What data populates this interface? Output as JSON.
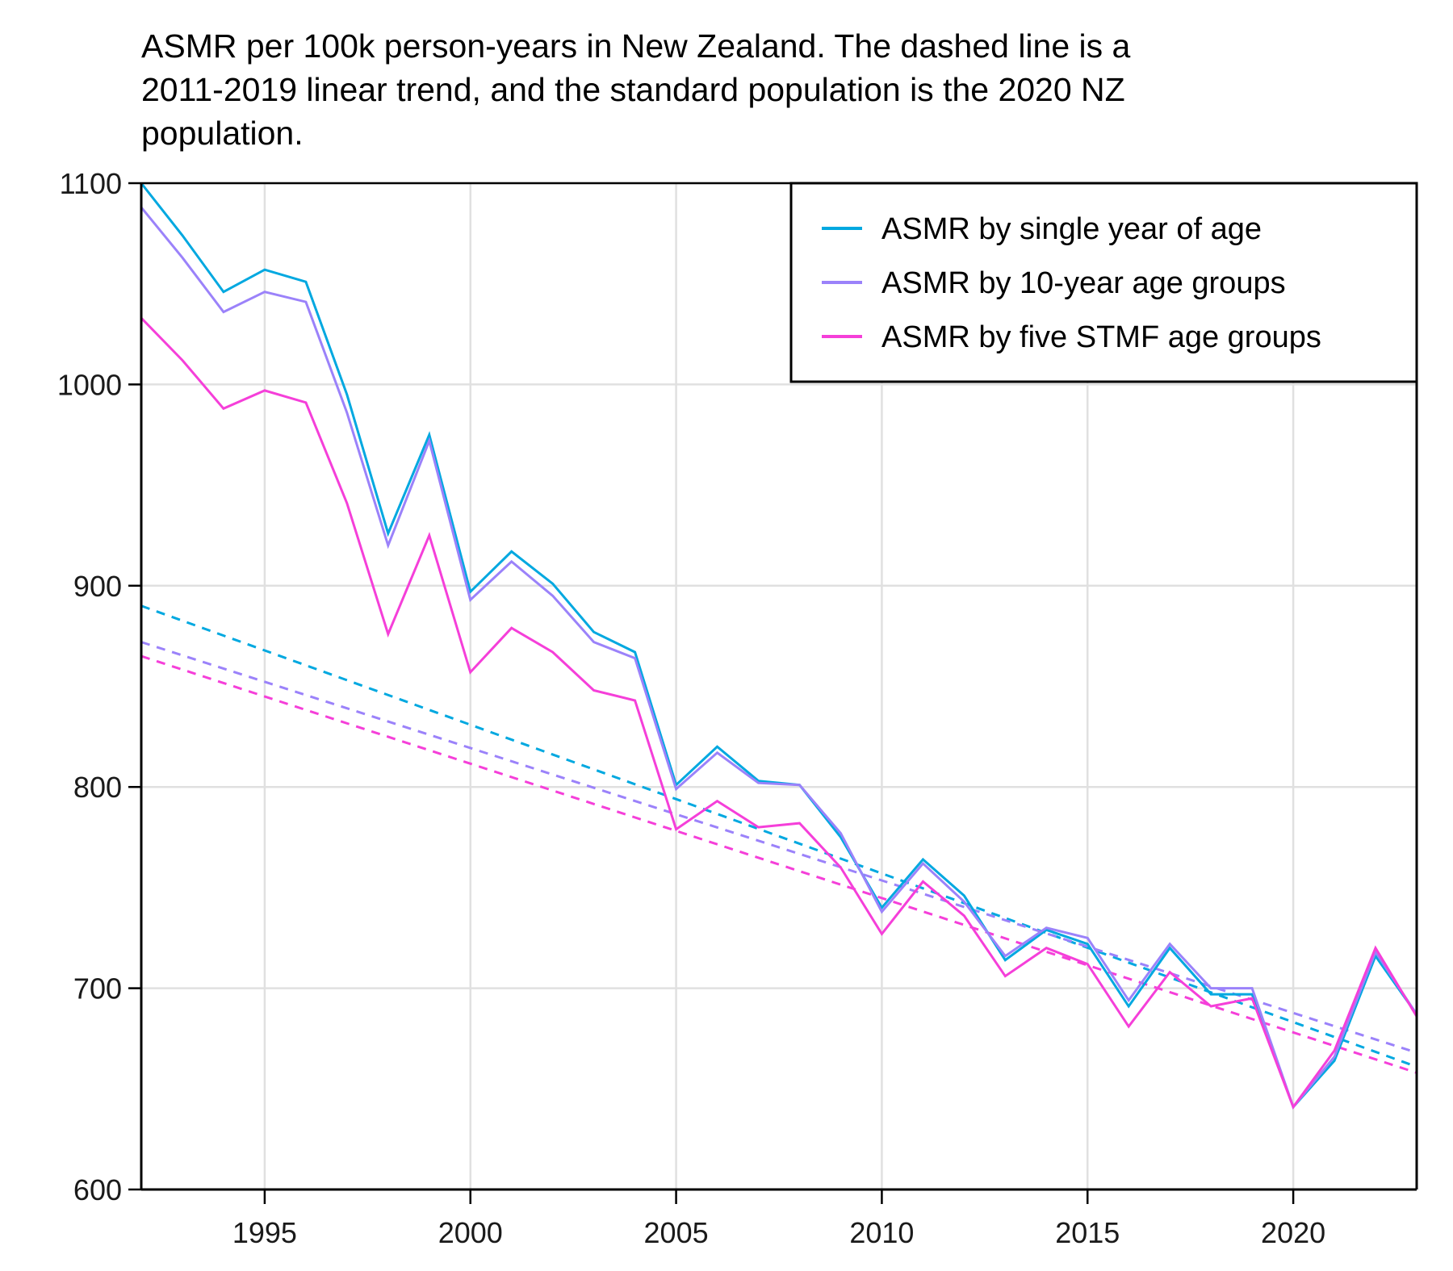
{
  "chart_data": {
    "type": "line",
    "title": "ASMR per 100k person-years in New Zealand. The dashed line is a 2011-2019 linear trend, and the standard population is the 2020 NZ population.",
    "title_lines": [
      "ASMR per 100k person-years in New Zealand. The dashed line is a",
      "2011-2019 linear trend, and the standard population is the 2020 NZ",
      "population."
    ],
    "xlabel": "",
    "ylabel": "",
    "xlim": [
      1992,
      2023
    ],
    "ylim": [
      600,
      1100
    ],
    "xticks": [
      1995,
      2000,
      2005,
      2010,
      2015,
      2020
    ],
    "xtick_labels": [
      "1995",
      "2000",
      "2005",
      "2010",
      "2015",
      "2020"
    ],
    "yticks": [
      600,
      700,
      800,
      900,
      1000,
      1100
    ],
    "ytick_labels": [
      "600",
      "700",
      "800",
      "900",
      "1000",
      "1100"
    ],
    "grid": true,
    "legend_position": "top-right",
    "x": [
      1992,
      1993,
      1994,
      1995,
      1996,
      1997,
      1998,
      1999,
      2000,
      2001,
      2002,
      2003,
      2004,
      2005,
      2006,
      2007,
      2008,
      2009,
      2010,
      2011,
      2012,
      2013,
      2014,
      2015,
      2016,
      2017,
      2018,
      2019,
      2020,
      2021,
      2022,
      2023
    ],
    "series": [
      {
        "name": "ASMR by single year of age",
        "color": "#00a8e0",
        "values": [
          1100,
          1074,
          1046,
          1057,
          1051,
          995,
          926,
          975,
          897,
          917,
          901,
          877,
          867,
          801,
          820,
          803,
          801,
          775,
          740,
          764,
          746,
          714,
          729,
          722,
          691,
          720,
          697,
          697,
          641,
          664,
          716,
          687
        ],
        "trend": {
          "x": [
            1992,
            2023
          ],
          "values": [
            890,
            661
          ]
        }
      },
      {
        "name": "ASMR by 10-year age groups",
        "color": "#9b82fa",
        "values": [
          1088,
          1063,
          1036,
          1046,
          1041,
          986,
          920,
          972,
          893,
          912,
          895,
          872,
          864,
          799,
          817,
          802,
          801,
          777,
          738,
          762,
          743,
          716,
          730,
          725,
          694,
          722,
          700,
          700,
          641,
          666,
          718,
          687
        ],
        "trend": {
          "x": [
            1992,
            2023
          ],
          "values": [
            872,
            668
          ]
        }
      },
      {
        "name": "ASMR by five STMF age groups",
        "color": "#f53fd9",
        "values": [
          1033,
          1012,
          988,
          997,
          991,
          941,
          876,
          925,
          857,
          879,
          867,
          848,
          843,
          779,
          793,
          780,
          782,
          760,
          727,
          753,
          736,
          706,
          720,
          712,
          681,
          708,
          691,
          695,
          641,
          669,
          720,
          686
        ],
        "trend": {
          "x": [
            1992,
            2023
          ],
          "values": [
            865,
            658
          ]
        }
      }
    ]
  }
}
